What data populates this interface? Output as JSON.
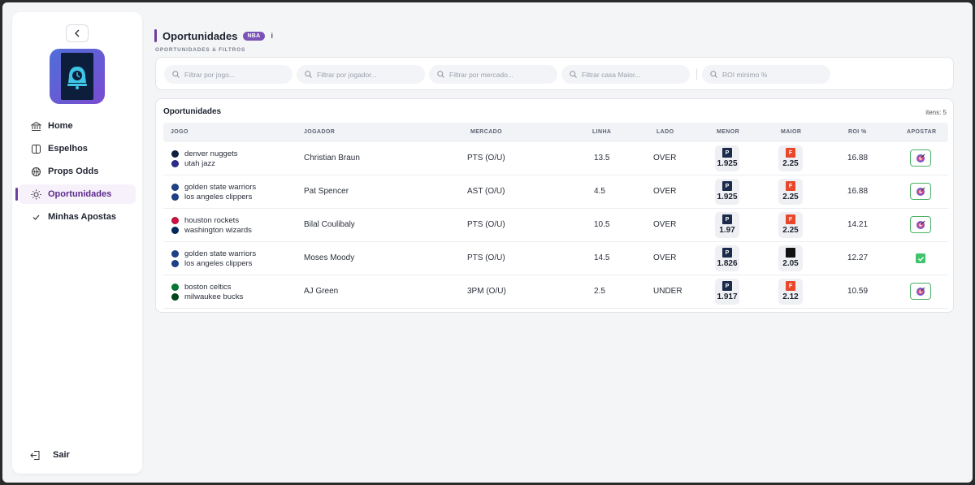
{
  "sidebar": {
    "items": [
      {
        "label": "Home",
        "icon": "bank-icon",
        "active": false
      },
      {
        "label": "Espelhos",
        "icon": "mirror-icon",
        "active": false
      },
      {
        "label": "Props Odds",
        "icon": "basketball-icon",
        "active": false
      },
      {
        "label": "Oportunidades",
        "icon": "sun-icon",
        "active": true
      },
      {
        "label": "Minhas Apostas",
        "icon": "check-icon",
        "active": false
      }
    ],
    "logout_label": "Sair"
  },
  "header": {
    "title": "Oportunidades",
    "badge": "NBA",
    "info": "i",
    "subtitle": "OPORTUNIDADES & FILTROS"
  },
  "filters": {
    "game_placeholder": "Filtrar por jogo...",
    "player_placeholder": "Filtrar por jogador...",
    "market_placeholder": "Filtrar por mercado...",
    "house_placeholder": "Filtrar casa Maior...",
    "roi_placeholder": "ROI mínimo %"
  },
  "table": {
    "title": "Oportunidades",
    "items_count": "itens: 5",
    "columns": [
      "JOGO",
      "JOGADOR",
      "MERCADO",
      "LINHA",
      "LADO",
      "MENOR",
      "MAIOR",
      "ROI %",
      "APOSTAR"
    ],
    "rows": [
      {
        "team1": "denver nuggets",
        "team1_color": "#0e2240",
        "team2": "utah jazz",
        "team2_color": "#2b2c8e",
        "player": "Christian Braun",
        "market": "PTS (O/U)",
        "line": "13.5",
        "side": "OVER",
        "menor": "1.925",
        "menor_book": "P",
        "menor_color": "#1a2b4c",
        "maior": "2.25",
        "maior_book": "F",
        "maior_color": "#e8472c",
        "roi": "16.88",
        "placed": false
      },
      {
        "team1": "golden state warriors",
        "team1_color": "#1d428a",
        "team2": "los angeles clippers",
        "team2_color": "#1d428a",
        "player": "Pat Spencer",
        "market": "AST (O/U)",
        "line": "4.5",
        "side": "OVER",
        "menor": "1.925",
        "menor_book": "P",
        "menor_color": "#1a2b4c",
        "maior": "2.25",
        "maior_book": "F",
        "maior_color": "#e8472c",
        "roi": "16.88",
        "placed": false
      },
      {
        "team1": "houston rockets",
        "team1_color": "#ce1141",
        "team2": "washington wizards",
        "team2_color": "#002b5c",
        "player": "Bilal Coulibaly",
        "market": "PTS (O/U)",
        "line": "10.5",
        "side": "OVER",
        "menor": "1.97",
        "menor_book": "P",
        "menor_color": "#1a2b4c",
        "maior": "2.25",
        "maior_book": "F",
        "maior_color": "#e8472c",
        "roi": "14.21",
        "placed": false
      },
      {
        "team1": "golden state warriors",
        "team1_color": "#1d428a",
        "team2": "los angeles clippers",
        "team2_color": "#1d428a",
        "player": "Moses Moody",
        "market": "PTS (O/U)",
        "line": "14.5",
        "side": "OVER",
        "menor": "1.826",
        "menor_book": "P",
        "menor_color": "#1a2b4c",
        "maior": "2.05",
        "maior_book": "",
        "maior_color": "#111111",
        "roi": "12.27",
        "placed": true
      },
      {
        "team1": "boston celtics",
        "team1_color": "#007a33",
        "team2": "milwaukee bucks",
        "team2_color": "#00471b",
        "player": "AJ Green",
        "market": "3PM (O/U)",
        "line": "2.5",
        "side": "UNDER",
        "menor": "1.917",
        "menor_book": "P",
        "menor_color": "#1a2b4c",
        "maior": "2.12",
        "maior_book": "F",
        "maior_color": "#e8472c",
        "roi": "10.59",
        "placed": false
      }
    ]
  },
  "colors": {
    "accent": "#6b3fa0",
    "bet_border": "#4caf68",
    "placed_check": "#3ec46d"
  }
}
